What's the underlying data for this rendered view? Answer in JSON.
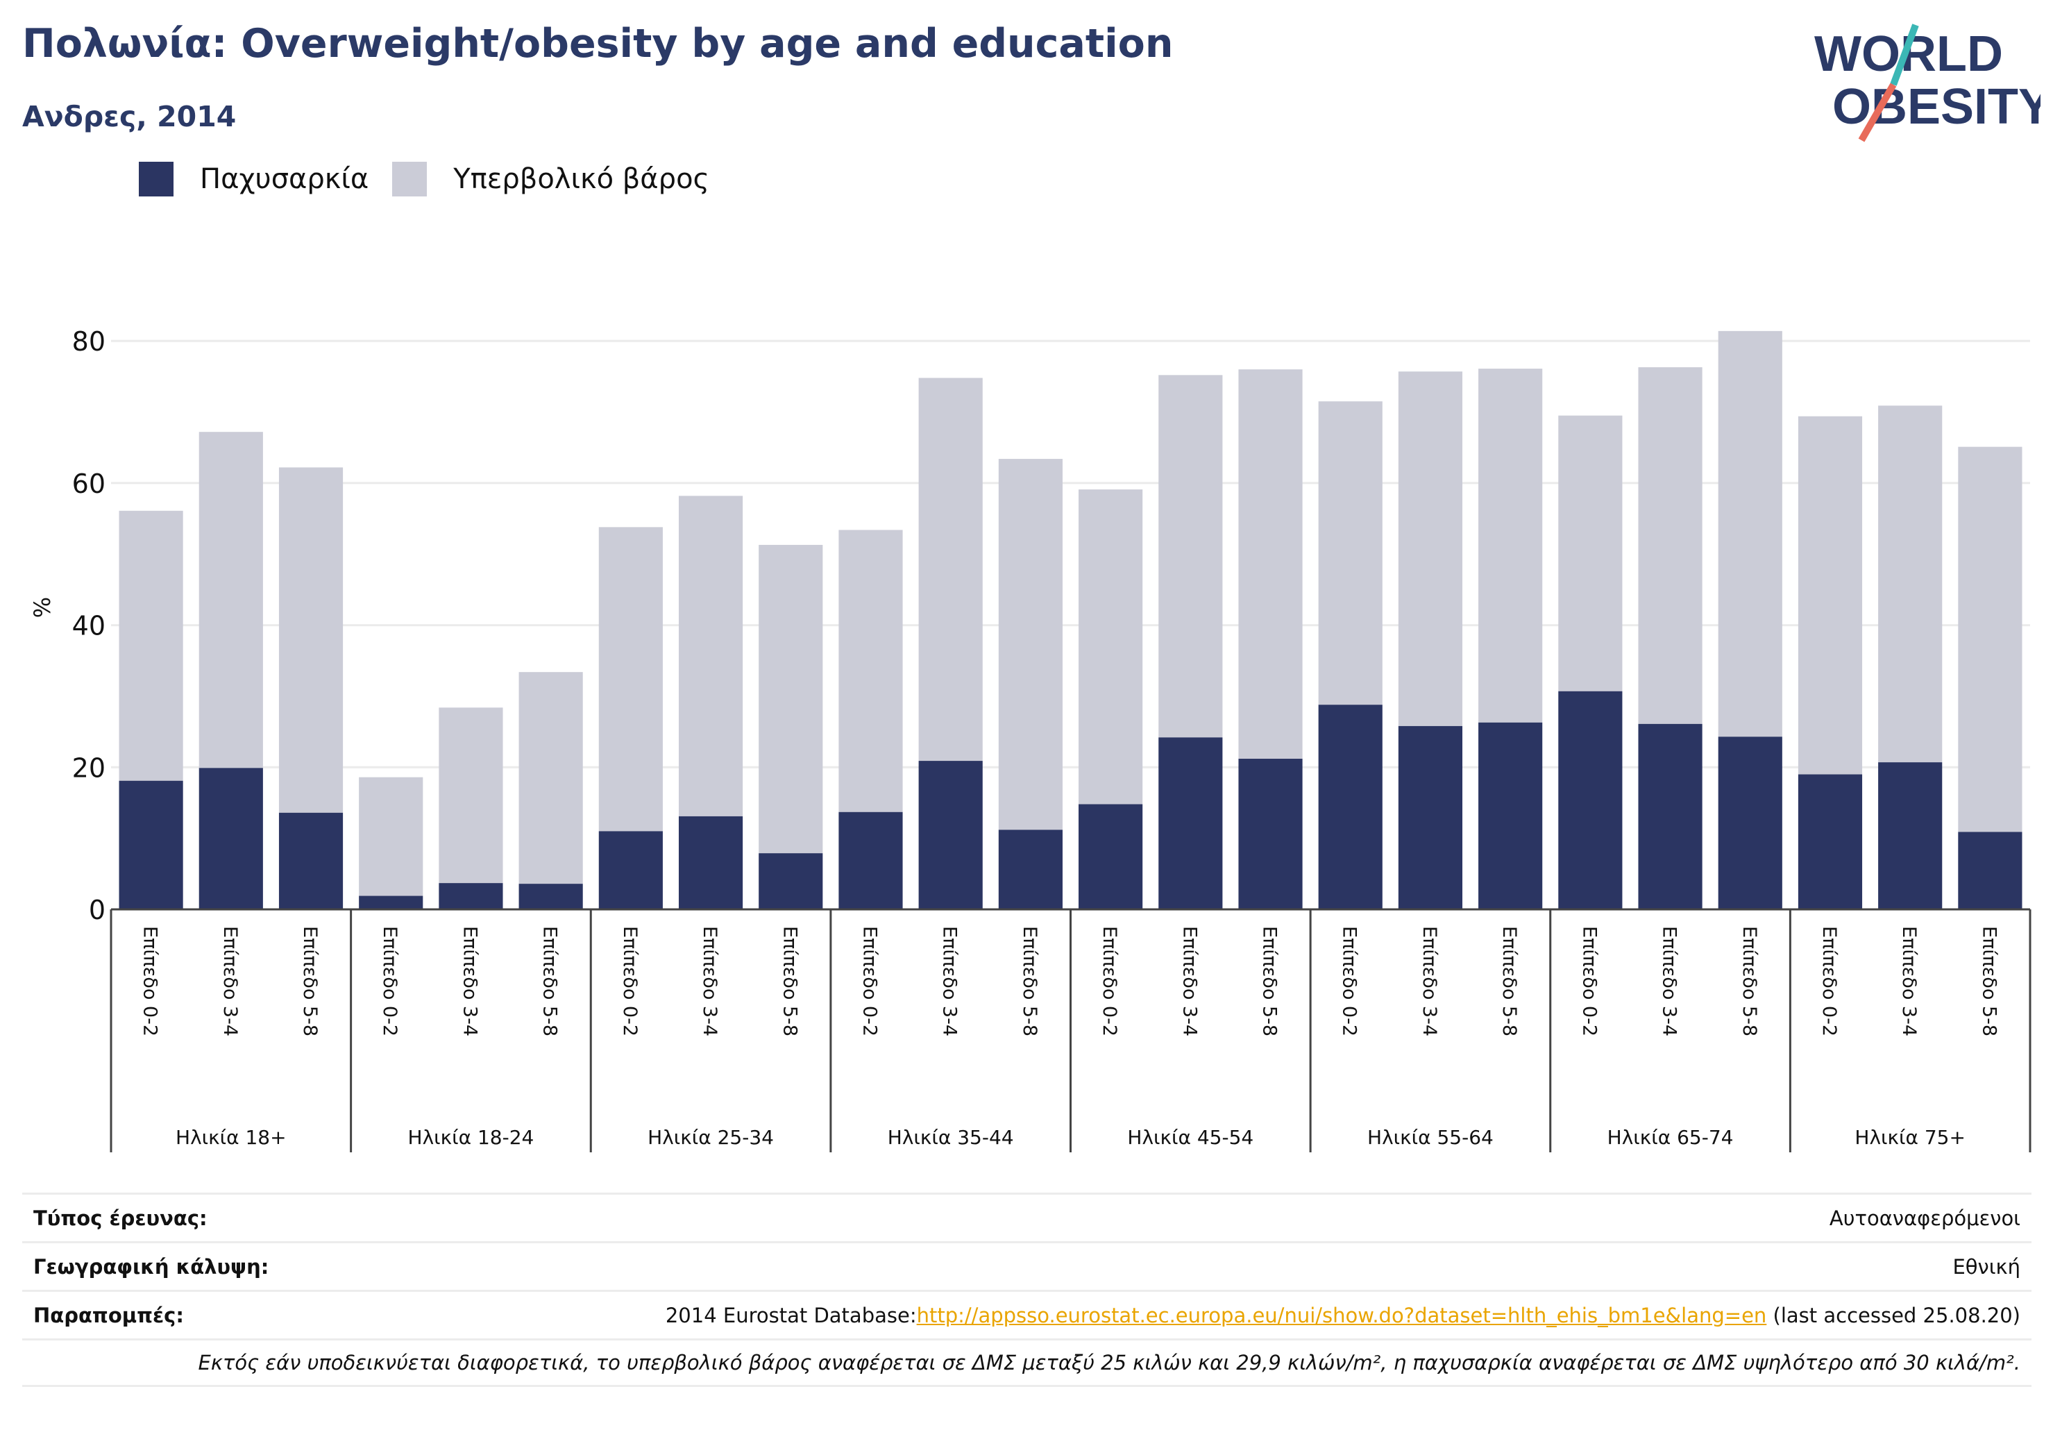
{
  "title": "Πολωνία: Overweight/obesity by age and education",
  "subtitle": "Ανδρες, 2014",
  "logo": {
    "line1": "WORLD",
    "line2": "OBESITY"
  },
  "colors": {
    "obesity": "#2b3562",
    "overweight": "#cbccd7",
    "title": "#2b3a67",
    "grid": "#ebebeb",
    "axis": "#444444",
    "link": "#e9a400",
    "logo_teal": "#3bb7b5",
    "logo_coral": "#e86b5a"
  },
  "legend": [
    {
      "label": "Παχυσαρκία",
      "color": "#2b3562"
    },
    {
      "label": "Υπερβολικό βάρος",
      "color": "#cbccd7"
    }
  ],
  "chart_data": {
    "type": "bar",
    "stacked": true,
    "ylabel": "%",
    "ylim": [
      0,
      85
    ],
    "yticks": [
      0,
      20,
      40,
      60,
      80
    ],
    "grid": true,
    "legend_position": "top-left",
    "groups": [
      {
        "label": "Ηλικία 18+",
        "bars": [
          {
            "label": "Επίπεδο 0-2",
            "obesity": 18.1,
            "total": 56.1
          },
          {
            "label": "Επίπεδο 3-4",
            "obesity": 19.9,
            "total": 67.2
          },
          {
            "label": "Επίπεδο 5-8",
            "obesity": 13.6,
            "total": 62.2
          }
        ]
      },
      {
        "label": "Ηλικία 18-24",
        "bars": [
          {
            "label": "Επίπεδο 0-2",
            "obesity": 1.9,
            "total": 18.6
          },
          {
            "label": "Επίπεδο 3-4",
            "obesity": 3.7,
            "total": 28.4
          },
          {
            "label": "Επίπεδο 5-8",
            "obesity": 3.6,
            "total": 33.4
          }
        ]
      },
      {
        "label": "Ηλικία 25-34",
        "bars": [
          {
            "label": "Επίπεδο 0-2",
            "obesity": 11.0,
            "total": 53.8
          },
          {
            "label": "Επίπεδο 3-4",
            "obesity": 13.1,
            "total": 58.2
          },
          {
            "label": "Επίπεδο 5-8",
            "obesity": 7.9,
            "total": 51.3
          }
        ]
      },
      {
        "label": "Ηλικία 35-44",
        "bars": [
          {
            "label": "Επίπεδο 0-2",
            "obesity": 13.7,
            "total": 53.4
          },
          {
            "label": "Επίπεδο 3-4",
            "obesity": 20.9,
            "total": 74.8
          },
          {
            "label": "Επίπεδο 5-8",
            "obesity": 11.2,
            "total": 63.4
          }
        ]
      },
      {
        "label": "Ηλικία 45-54",
        "bars": [
          {
            "label": "Επίπεδο 0-2",
            "obesity": 14.8,
            "total": 59.1
          },
          {
            "label": "Επίπεδο 3-4",
            "obesity": 24.2,
            "total": 75.2
          },
          {
            "label": "Επίπεδο 5-8",
            "obesity": 21.2,
            "total": 76.0
          }
        ]
      },
      {
        "label": "Ηλικία 55-64",
        "bars": [
          {
            "label": "Επίπεδο 0-2",
            "obesity": 28.8,
            "total": 71.5
          },
          {
            "label": "Επίπεδο 3-4",
            "obesity": 25.8,
            "total": 75.7
          },
          {
            "label": "Επίπεδο 5-8",
            "obesity": 26.3,
            "total": 76.1
          }
        ]
      },
      {
        "label": "Ηλικία 65-74",
        "bars": [
          {
            "label": "Επίπεδο 0-2",
            "obesity": 30.7,
            "total": 69.5
          },
          {
            "label": "Επίπεδο 3-4",
            "obesity": 26.1,
            "total": 76.3
          },
          {
            "label": "Επίπεδο 5-8",
            "obesity": 24.3,
            "total": 81.4
          }
        ]
      },
      {
        "label": "Ηλικία 75+",
        "bars": [
          {
            "label": "Επίπεδο 0-2",
            "obesity": 19.0,
            "total": 69.4
          },
          {
            "label": "Επίπεδο 3-4",
            "obesity": 20.7,
            "total": 70.9
          },
          {
            "label": "Επίπεδο 5-8",
            "obesity": 10.9,
            "total": 65.1
          }
        ]
      }
    ]
  },
  "meta": {
    "survey_type_label": "Τύπος έρευνας:",
    "survey_type_value": "Αυτοαναφερόμενοι",
    "coverage_label": "Γεωγραφική κάλυψη:",
    "coverage_value": "Εθνική",
    "references_label": "Παραπομπές:",
    "references_prefix": "2014 Eurostat Database:",
    "references_link": "http://appsso.eurostat.ec.europa.eu/nui/show.do?dataset=hlth_ehis_bm1e&lang=en",
    "references_suffix": " (last accessed 25.08.20)",
    "note": "Εκτός εάν υποδεικνύεται διαφορετικά, το υπερβολικό βάρος αναφέρεται σε ΔΜΣ μεταξύ 25 κιλών και 29,9 κιλών/m², η παχυσαρκία αναφέρεται σε ΔΜΣ υψηλότερο από 30 κιλά/m²."
  }
}
